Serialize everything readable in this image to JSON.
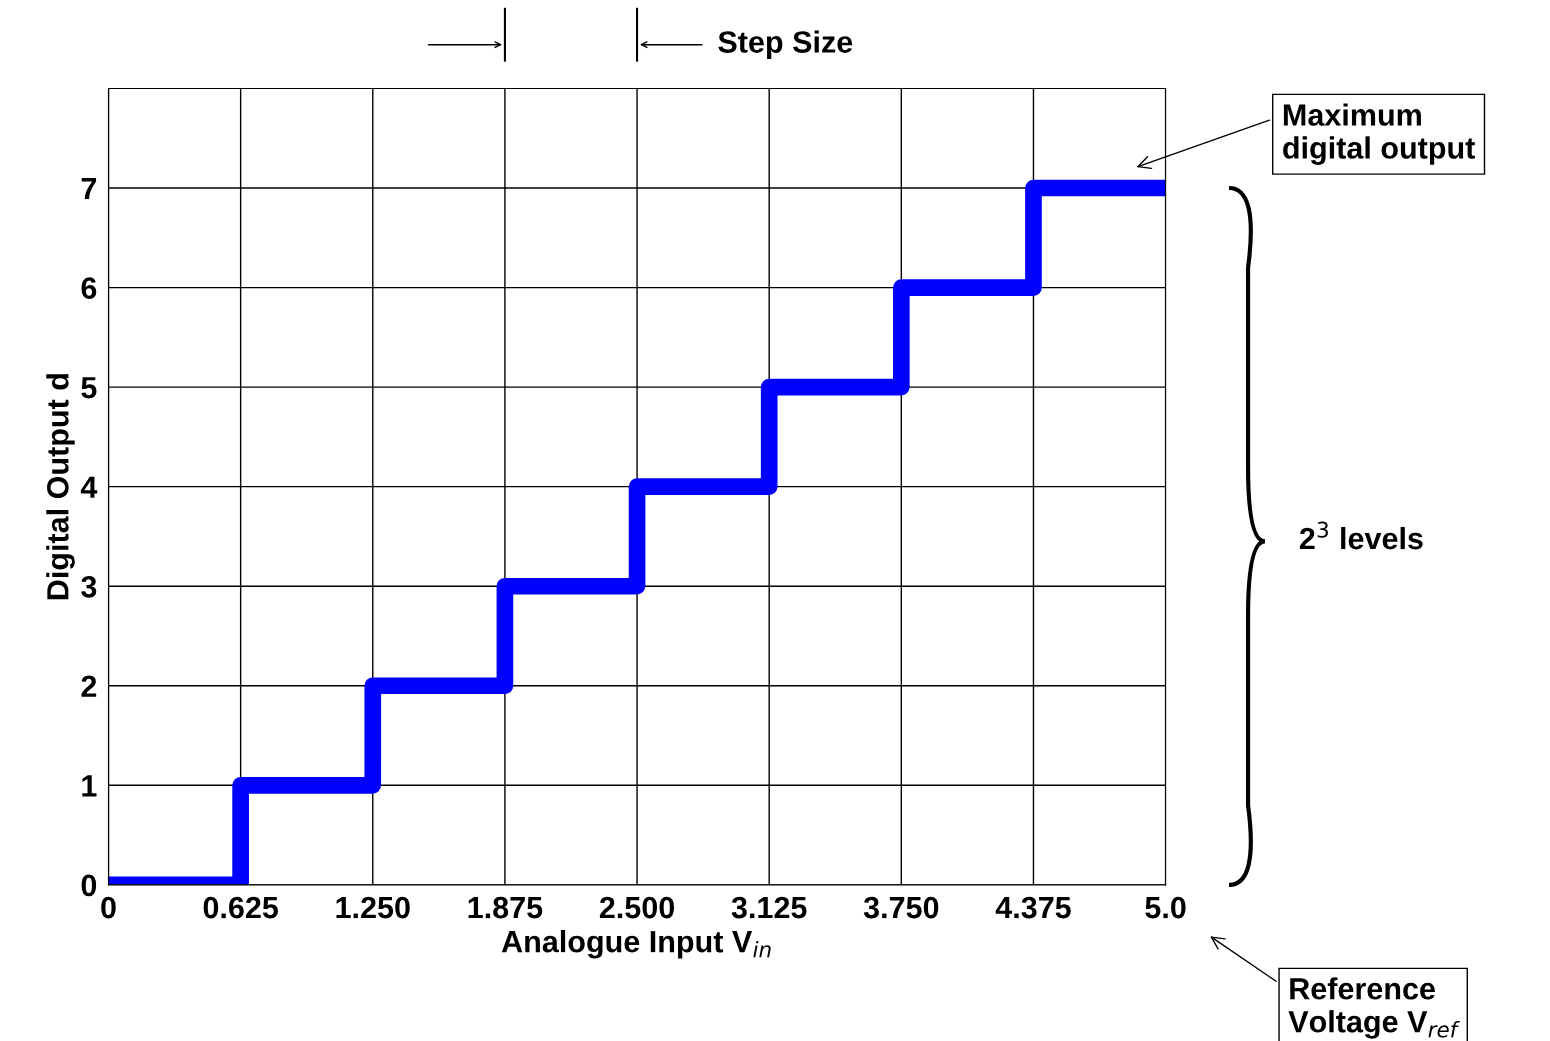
{
  "chart_data": {
    "type": "step",
    "xlabel": "Analogue Input V$_{in}$",
    "ylabel": "Digital Output d",
    "x": [
      0,
      0.625,
      1.25,
      1.875,
      2.5,
      3.125,
      3.75,
      4.375,
      5.0
    ],
    "series": [
      {
        "color": "#0000ff",
        "values": [
          0,
          1,
          2,
          3,
          4,
          5,
          6,
          7,
          7
        ]
      }
    ],
    "xlim": [
      0,
      5.0
    ],
    "ylim": [
      0,
      8
    ],
    "xticks": [
      0,
      {
        "value": 0.625,
        "label": "0.625"
      },
      {
        "value": 1.25,
        "label": "1.250"
      },
      {
        "value": 1.875,
        "label": "1.875"
      },
      {
        "value": 2.5,
        "label": "2.500"
      },
      {
        "value": 3.125,
        "label": "3.125"
      },
      {
        "value": 3.75,
        "label": "3.750"
      },
      {
        "value": 4.375,
        "label": "4.375"
      },
      {
        "value": 5.0,
        "label": "5.0"
      }
    ],
    "yticks": [
      0,
      1,
      2,
      3,
      4,
      5,
      6,
      7
    ],
    "grid": true,
    "legend": false,
    "line_style": "solid",
    "marker": "none",
    "annotations": [
      "Step Size",
      "Maximum\ndigital output",
      "2$^{3}$ levels",
      "Reference\nVoltage V$_{ref}$"
    ]
  }
}
